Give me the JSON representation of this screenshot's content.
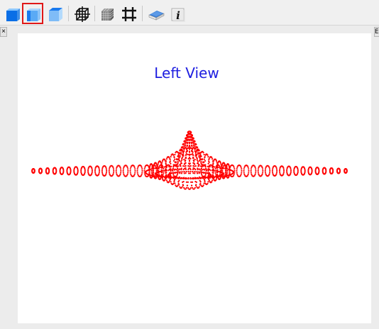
{
  "toolbar": {
    "buttons": [
      {
        "name": "front-view-button",
        "icon": "front-cube-icon",
        "active": false
      },
      {
        "name": "left-view-button",
        "icon": "left-cube-icon",
        "active": true
      },
      {
        "name": "top-view-button",
        "icon": "top-cube-icon",
        "active": false
      },
      {
        "name": "wireframe-button",
        "icon": "wireframe-cube-icon",
        "active": false
      },
      {
        "name": "mesh-button",
        "icon": "mesh-cube-icon",
        "active": false
      },
      {
        "name": "grid-button",
        "icon": "grid-hash-icon",
        "active": false
      },
      {
        "name": "help-book-button",
        "icon": "book-icon",
        "active": false
      },
      {
        "name": "info-button",
        "icon": "info-icon",
        "active": false
      }
    ],
    "info_glyph": "i"
  },
  "panel": {
    "close_glyph": "×",
    "side_tab_label": "E"
  },
  "view": {
    "title": "Left View",
    "marker_color": "#ff0000",
    "title_color": "#1d1de0"
  }
}
